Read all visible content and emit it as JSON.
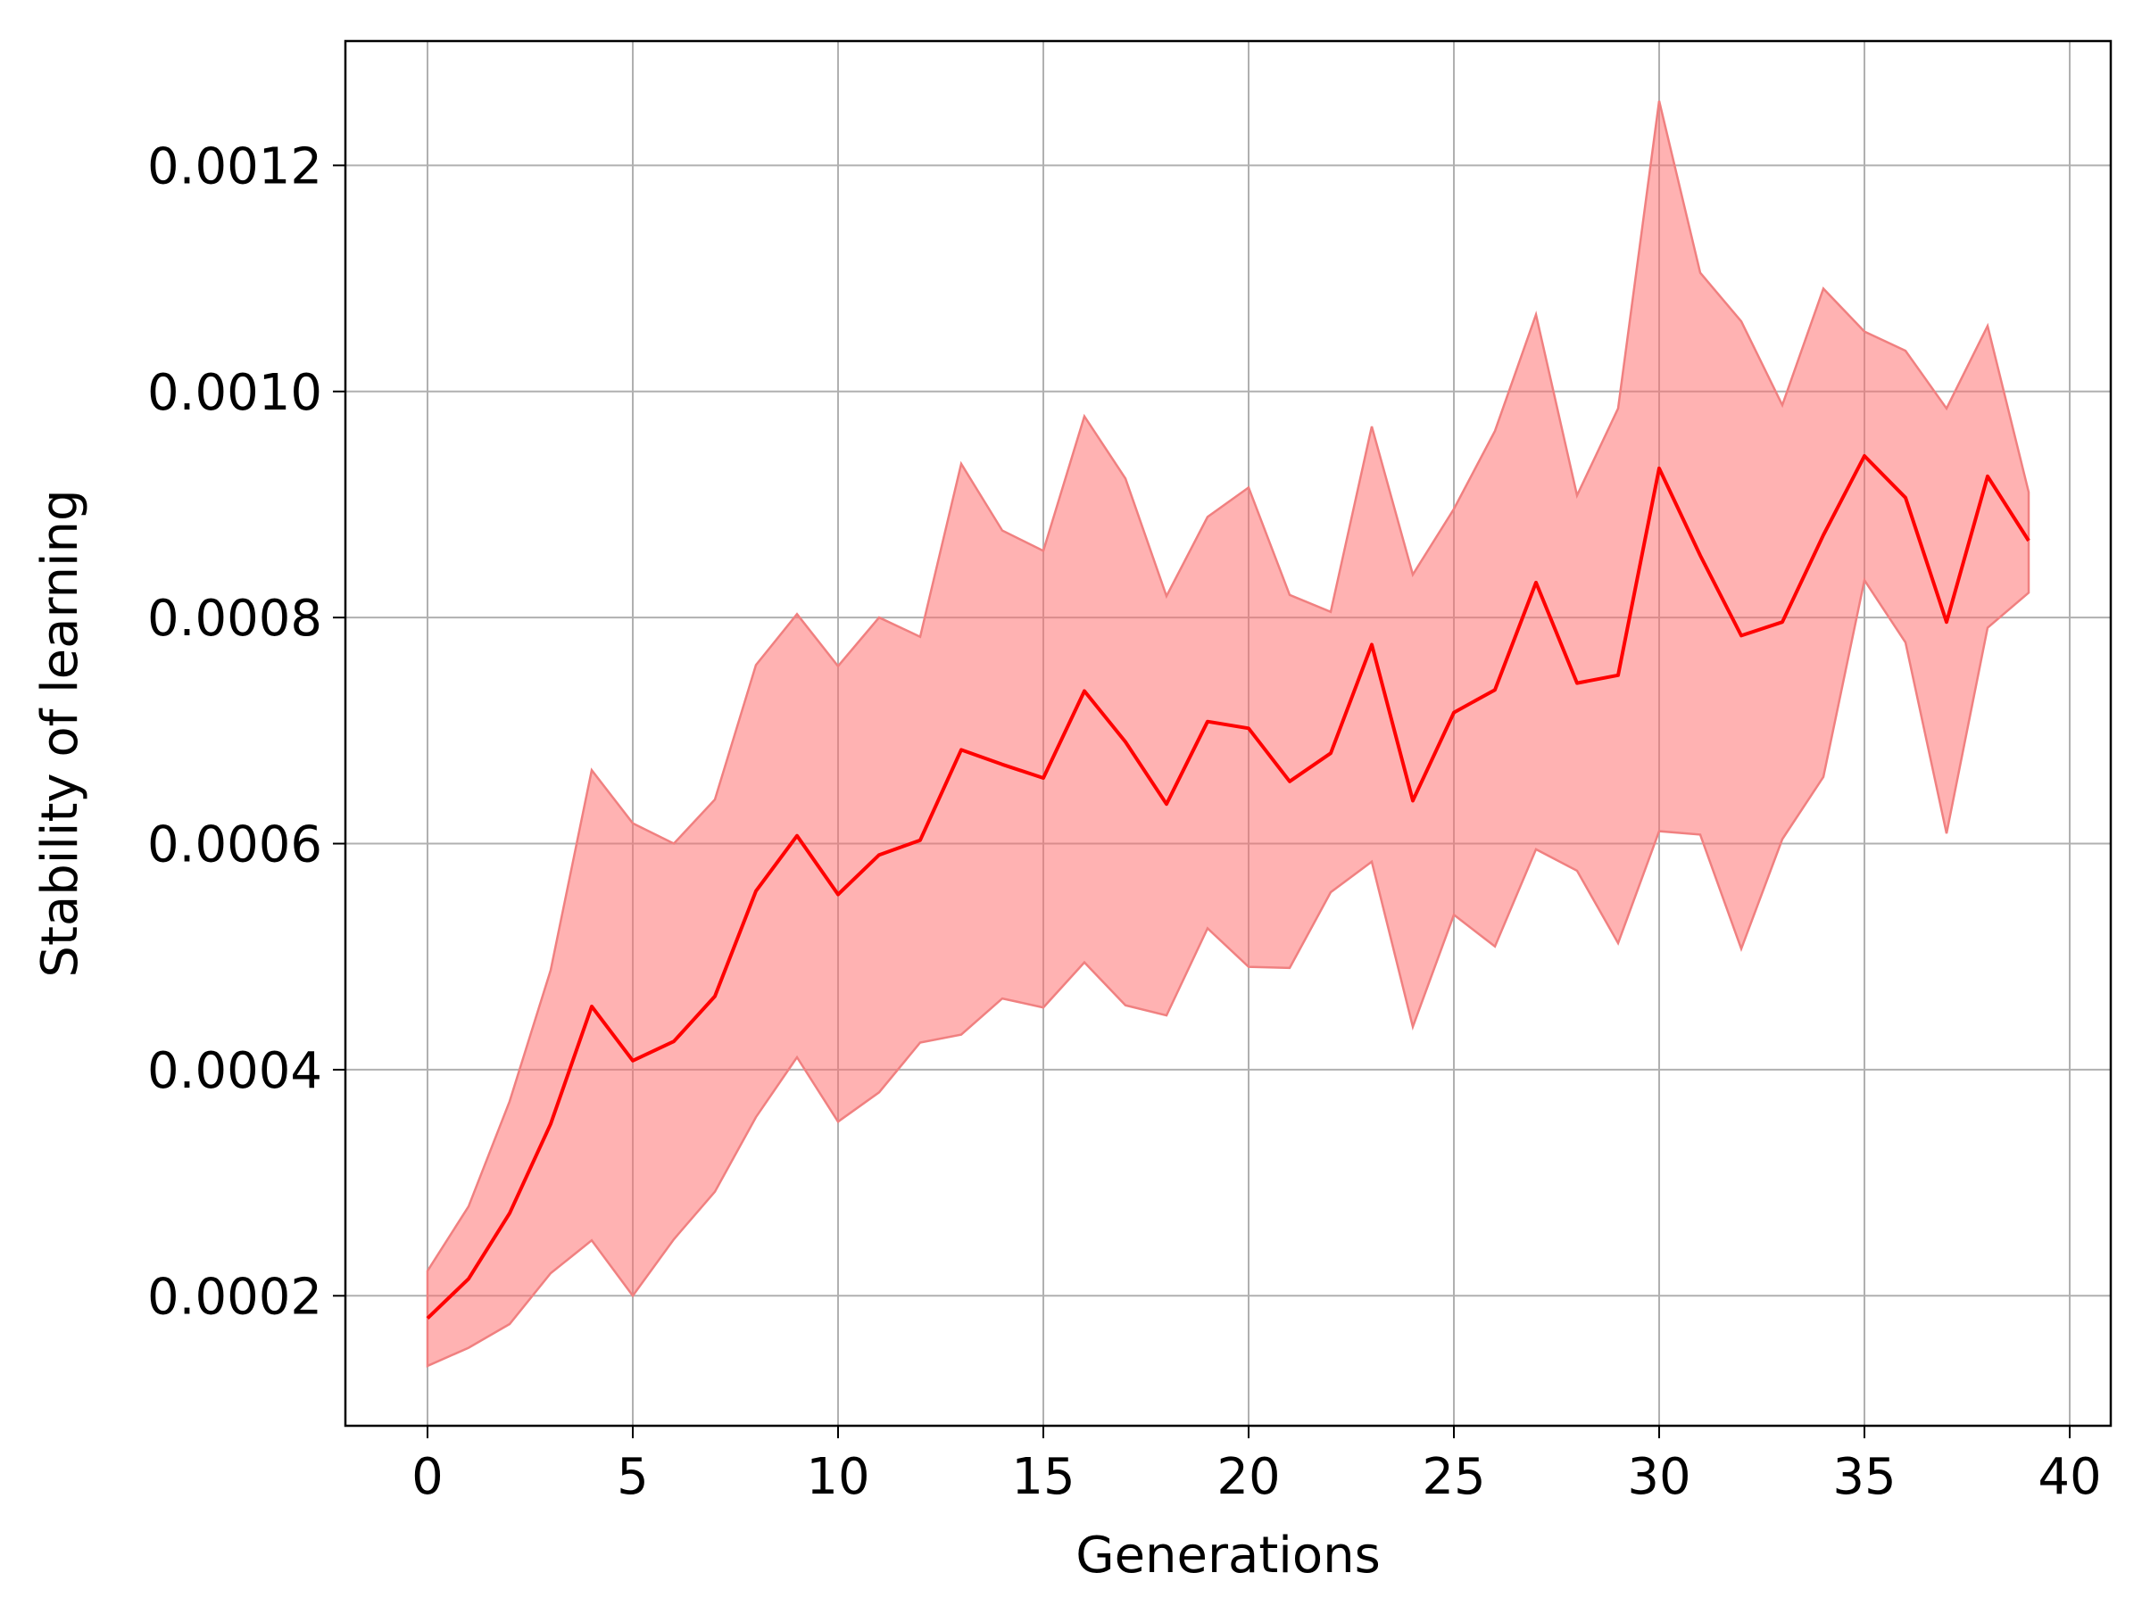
{
  "chart_data": {
    "type": "line",
    "xlabel": "Generations",
    "ylabel": "Stability of learning",
    "xlim": [
      -2,
      41
    ],
    "ylim": [
      8.5e-05,
      0.00131
    ],
    "grid": true,
    "xticks": [
      0,
      5,
      10,
      15,
      20,
      25,
      30,
      35,
      40
    ],
    "xtick_labels": [
      "0",
      "5",
      "10",
      "15",
      "20",
      "25",
      "30",
      "35",
      "40"
    ],
    "yticks": [
      0.0002,
      0.0004,
      0.0006,
      0.0008,
      0.001,
      0.0012
    ],
    "ytick_labels": [
      "0.0002",
      "0.0004",
      "0.0006",
      "0.0008",
      "0.0010",
      "0.0012"
    ],
    "colors": {
      "line": "#ff0000",
      "band": "#ff6b6b",
      "band_edge": "#f08080"
    },
    "x": [
      0,
      1,
      2,
      3,
      4,
      5,
      6,
      7,
      8,
      9,
      10,
      11,
      12,
      13,
      14,
      15,
      16,
      17,
      18,
      19,
      20,
      21,
      22,
      23,
      24,
      25,
      26,
      27,
      28,
      29,
      30,
      31,
      32,
      33,
      34,
      35,
      36,
      37,
      38,
      39
    ],
    "series": [
      {
        "values": [
          0.00018,
          0.000215,
          0.000273,
          0.000352,
          0.000456,
          0.000408,
          0.000425,
          0.000465,
          0.000558,
          0.000607,
          0.000555,
          0.00059,
          0.000603,
          0.000683,
          0.00067,
          0.000658,
          0.000735,
          0.00069,
          0.000635,
          0.000708,
          0.000702,
          0.000655,
          0.00068,
          0.000776,
          0.000638,
          0.000716,
          0.000736,
          0.000831,
          0.000742,
          0.000749,
          0.000932,
          0.000855,
          0.000784,
          0.000796,
          0.000873,
          0.000943,
          0.000906,
          0.000796,
          0.000925,
          0.000868
        ],
        "lower": [
          0.000138,
          0.000154,
          0.000175,
          0.00022,
          0.000249,
          0.0002,
          0.00025,
          0.000292,
          0.000358,
          0.000411,
          0.000354,
          0.00038,
          0.000424,
          0.000431,
          0.000463,
          0.000455,
          0.000495,
          0.000457,
          0.000448,
          0.000525,
          0.000491,
          0.00049,
          0.000557,
          0.000584,
          0.000438,
          0.000537,
          0.000509,
          0.000595,
          0.000576,
          0.000512,
          0.000611,
          0.000608,
          0.000507,
          0.000604,
          0.000659,
          0.000833,
          0.000778,
          0.000609,
          0.000791,
          0.000822
        ],
        "upper": [
          0.000222,
          0.000279,
          0.000372,
          0.000488,
          0.000665,
          0.000618,
          0.0006,
          0.000639,
          0.000758,
          0.000803,
          0.000757,
          0.0008,
          0.000783,
          0.000936,
          0.000877,
          0.000859,
          0.000978,
          0.000923,
          0.000819,
          0.000889,
          0.000915,
          0.00082,
          0.000805,
          0.000969,
          0.000838,
          0.000896,
          0.000965,
          0.001068,
          0.000908,
          0.000985,
          0.001257,
          0.001105,
          0.001062,
          0.000988,
          0.001091,
          0.001053,
          0.001036,
          0.000985,
          0.001058,
          0.000911
        ]
      }
    ]
  }
}
